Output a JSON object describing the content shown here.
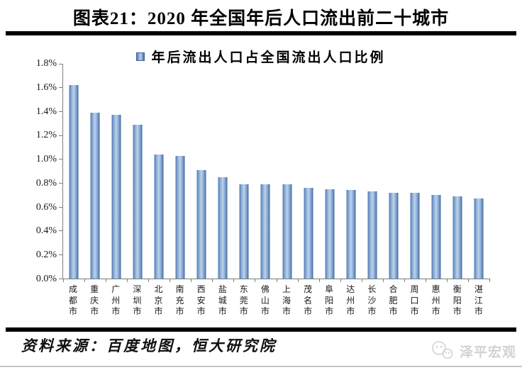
{
  "page": {
    "title": "图表21：2020 年全国年后人口流出前二十城市",
    "source_note": "资料来源：百度地图，恒大研究院",
    "watermark": "泽平宏观"
  },
  "chart_data": {
    "type": "bar",
    "title": "图表21：2020 年全国年后人口流出前二十城市",
    "legend": "年后流出人口占全国流出人口比例",
    "legend_position": "top-center",
    "categories": [
      "成都市",
      "重庆市",
      "广州市",
      "深圳市",
      "北京市",
      "南充市",
      "西安市",
      "盐城市",
      "东莞市",
      "佛山市",
      "上海市",
      "茂名市",
      "阜阳市",
      "达州市",
      "长沙市",
      "合肥市",
      "周口市",
      "惠州市",
      "衡阳市",
      "湛江市"
    ],
    "values": [
      1.62,
      1.39,
      1.37,
      1.29,
      1.04,
      1.03,
      0.91,
      0.85,
      0.79,
      0.79,
      0.79,
      0.76,
      0.75,
      0.74,
      0.73,
      0.72,
      0.72,
      0.7,
      0.69,
      0.67
    ],
    "unit": "%",
    "xlabel": "",
    "ylabel": "",
    "ylim": [
      0,
      1.8
    ],
    "ytick_step": 0.2,
    "ytick_labels": [
      "0.0%",
      "0.2%",
      "0.4%",
      "0.6%",
      "0.8%",
      "1.0%",
      "1.2%",
      "1.4%",
      "1.6%",
      "1.8%"
    ],
    "grid": false,
    "bar_color": "#4f81bd",
    "bar_gradient_edge": "#3f679c",
    "bar_gradient_center": "#bdd1ea",
    "axis_color": "#7d7d7d"
  }
}
